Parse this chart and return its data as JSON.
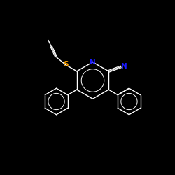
{
  "background_color": "#000000",
  "bond_color": "#ffffff",
  "N_color": "#1a1aff",
  "S_color": "#ffa500",
  "O_color": "#ff2200",
  "line_width": 1.0,
  "figsize": [
    2.5,
    2.5
  ],
  "dpi": 100,
  "xlim": [
    0,
    10
  ],
  "ylim": [
    0,
    10
  ]
}
